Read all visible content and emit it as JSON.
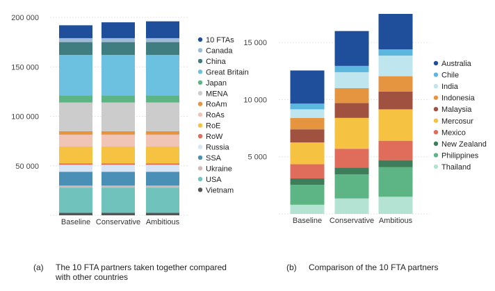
{
  "chart_data": [
    {
      "type": "bar",
      "stacked": true,
      "categories": [
        "Baseline",
        "Conservative",
        "Ambitious"
      ],
      "ylim": [
        0,
        200000
      ],
      "yticks": [
        50000,
        100000,
        150000,
        200000
      ],
      "ytick_labels": [
        "50 000",
        "100 000",
        "150 000",
        "200 000"
      ],
      "grid": true,
      "legend_position": "right",
      "series": [
        {
          "name": "Vietnam",
          "color": "#555555",
          "values": [
            2500,
            2500,
            2500
          ]
        },
        {
          "name": "USA",
          "color": "#6fc3bc",
          "values": [
            25500,
            25500,
            25500
          ]
        },
        {
          "name": "Ukraine",
          "color": "#d3b8b8",
          "values": [
            2000,
            2000,
            2000
          ]
        },
        {
          "name": "SSA",
          "color": "#4a8fb5",
          "values": [
            14000,
            14000,
            14000
          ]
        },
        {
          "name": "Russia",
          "color": "#d6e4f5",
          "values": [
            7000,
            7000,
            7000
          ]
        },
        {
          "name": "RoW",
          "color": "#e06c5b",
          "values": [
            1500,
            1500,
            1500
          ]
        },
        {
          "name": "RoE",
          "color": "#f5c242",
          "values": [
            17000,
            17000,
            17000
          ]
        },
        {
          "name": "RoAs",
          "color": "#f1c5b6",
          "values": [
            12000,
            12000,
            12000
          ]
        },
        {
          "name": "RoAm",
          "color": "#e5943f",
          "values": [
            3500,
            3500,
            3500
          ]
        },
        {
          "name": "MENA",
          "color": "#cccccc",
          "values": [
            29000,
            29000,
            29000
          ]
        },
        {
          "name": "Japan",
          "color": "#5db585",
          "values": [
            7000,
            7000,
            7000
          ]
        },
        {
          "name": "Great Britain",
          "color": "#6dc1e0",
          "values": [
            41000,
            41000,
            41000
          ]
        },
        {
          "name": "China",
          "color": "#3f7d80",
          "values": [
            13000,
            13000,
            13000
          ]
        },
        {
          "name": "Canada",
          "color": "#9db9d6",
          "values": [
            4000,
            4000,
            4000
          ]
        },
        {
          "name": "10 FTAs",
          "color": "#1f4e9a",
          "values": [
            13000,
            16000,
            17000
          ]
        }
      ]
    },
    {
      "type": "bar",
      "stacked": true,
      "categories": [
        "Baseline",
        "Conservative",
        "Ambitious"
      ],
      "ylim": [
        0,
        17500
      ],
      "yticks": [
        5000,
        10000,
        15000
      ],
      "ytick_labels": [
        "5 000",
        "10 000",
        "15 000"
      ],
      "grid": true,
      "legend_position": "right",
      "series": [
        {
          "name": "Thailand",
          "color": "#b5e3d3",
          "values": [
            800,
            1350,
            1500
          ]
        },
        {
          "name": "Philippines",
          "color": "#5db585",
          "values": [
            1750,
            2100,
            2600
          ]
        },
        {
          "name": "New Zealand",
          "color": "#3e7d5a",
          "values": [
            550,
            600,
            600
          ]
        },
        {
          "name": "Mexico",
          "color": "#e06c5b",
          "values": [
            1250,
            1650,
            1700
          ]
        },
        {
          "name": "Mercosur",
          "color": "#f5c242",
          "values": [
            1900,
            2700,
            2750
          ]
        },
        {
          "name": "Malaysia",
          "color": "#a0513f",
          "values": [
            1150,
            1300,
            1550
          ]
        },
        {
          "name": "Indonesia",
          "color": "#e5943f",
          "values": [
            1000,
            1300,
            1350
          ]
        },
        {
          "name": "India",
          "color": "#bfe5ef",
          "values": [
            750,
            1400,
            1800
          ]
        },
        {
          "name": "Chile",
          "color": "#5cb7df",
          "values": [
            500,
            550,
            550
          ]
        },
        {
          "name": "Australia",
          "color": "#1f4e9a",
          "values": [
            2900,
            3050,
            3100
          ]
        }
      ]
    }
  ],
  "captions": {
    "a": {
      "letter": "(a)",
      "text": "The 10 FTA partners taken together compared with other countries"
    },
    "b": {
      "letter": "(b)",
      "text": "Comparison of the 10 FTA partners"
    }
  }
}
